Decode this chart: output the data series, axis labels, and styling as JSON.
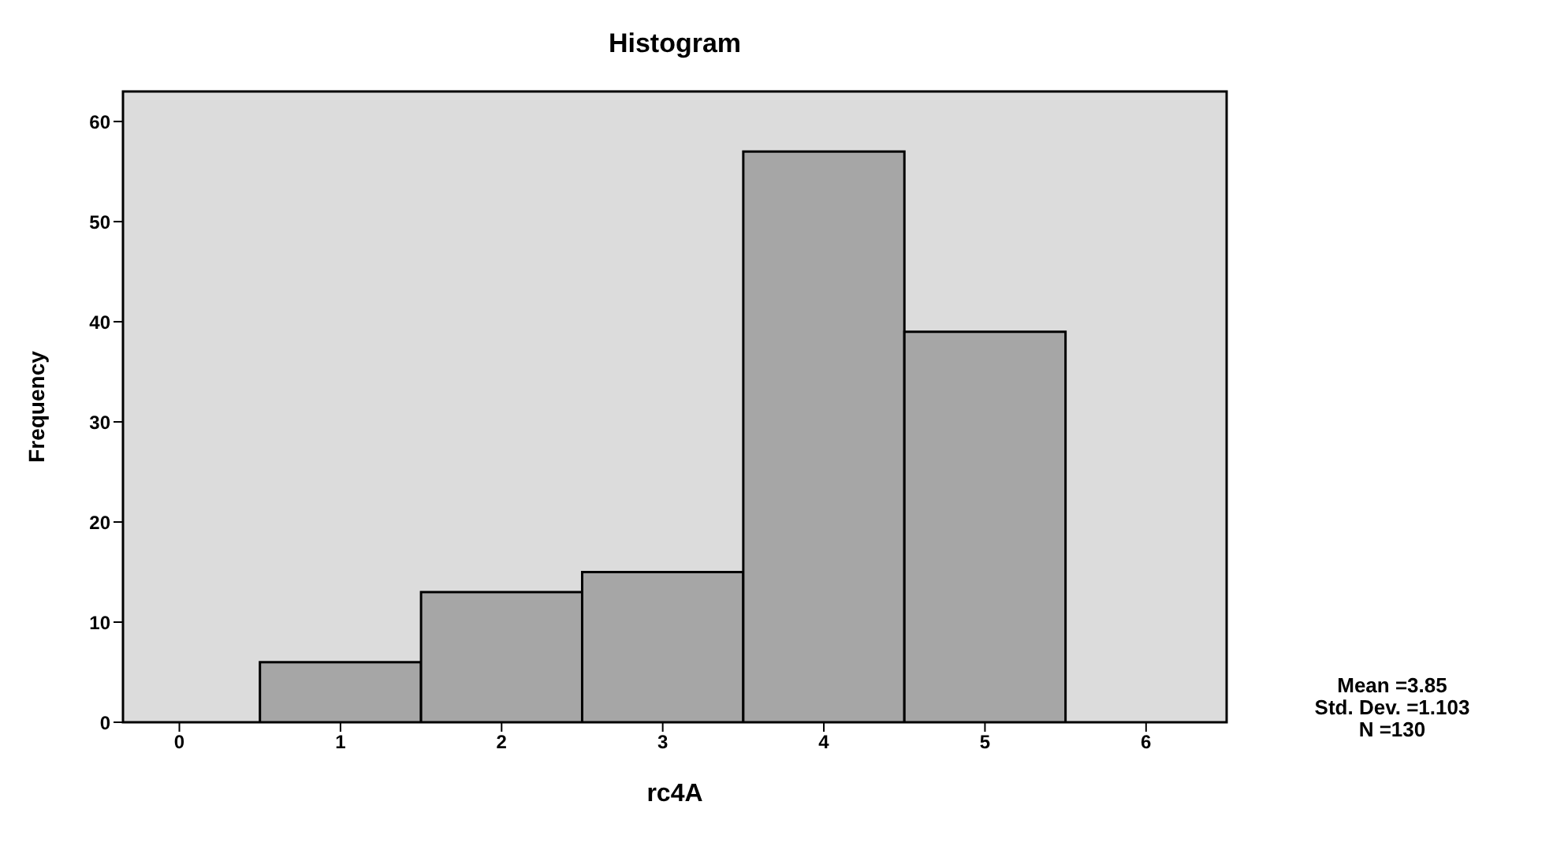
{
  "chart_data": {
    "type": "histogram",
    "title": "Histogram",
    "xlabel": "rc4A",
    "ylabel": "Frequency",
    "bins": [
      0.5,
      1.5,
      2.5,
      3.5,
      4.5,
      5.5
    ],
    "values": [
      6,
      13,
      15,
      57,
      39
    ],
    "color": "#a6a6a6",
    "xlim": [
      -0.35,
      6.5
    ],
    "xticks": [
      0,
      1,
      2,
      3,
      4,
      5,
      6
    ],
    "ylim": [
      0,
      63
    ],
    "yticks": [
      0,
      10,
      20,
      30,
      40,
      50,
      60
    ],
    "annotations": [
      "Mean =3.85",
      "Std. Dev. =1.103",
      "N =130"
    ]
  }
}
